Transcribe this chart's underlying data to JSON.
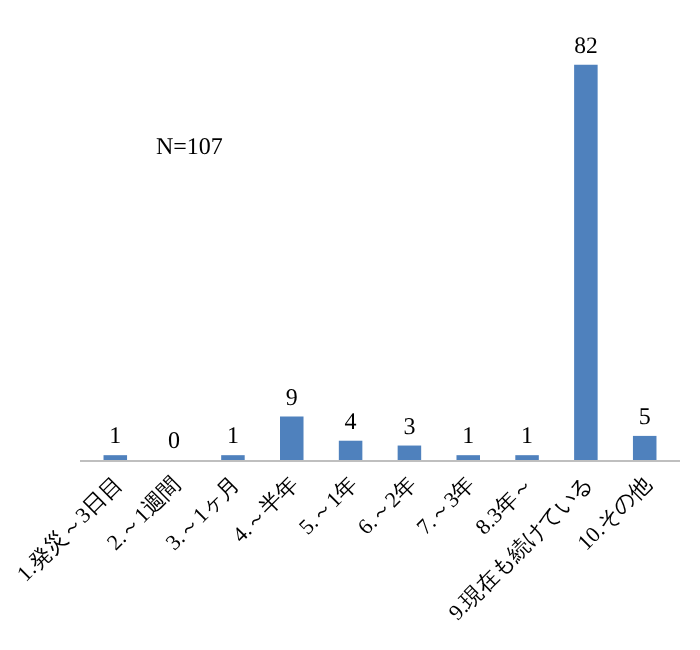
{
  "chart_data": {
    "type": "bar",
    "categories": [
      "1.発災～3日目",
      "2.～1週間",
      "3.～1ヶ月",
      "4.～半年",
      "5.～1年",
      "6.～2年",
      "7.～3年",
      "8.3年～",
      "9.現在も続けている",
      "10.その他"
    ],
    "values": [
      1,
      0,
      1,
      9,
      4,
      3,
      1,
      1,
      82,
      5
    ],
    "color": "#4f81bd",
    "data_labels": true,
    "grid": false,
    "annotations": [
      "N=107"
    ]
  }
}
